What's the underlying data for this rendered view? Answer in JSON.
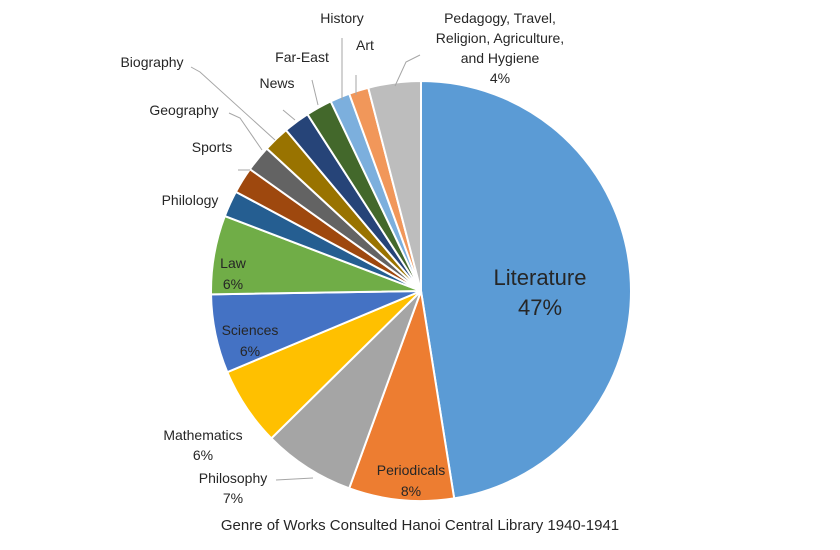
{
  "chart_data": {
    "type": "pie",
    "title": "Genre of Works Consulted Hanoi Central Library 1940-1941",
    "slices": [
      {
        "label": "Literature",
        "value": 47,
        "value_label": "47%",
        "color": "#5B9BD5"
      },
      {
        "label": "Periodicals",
        "value": 8,
        "value_label": "8%",
        "color": "#ED7D31"
      },
      {
        "label": "Philosophy",
        "value": 7,
        "value_label": "7%",
        "color": "#A5A5A5"
      },
      {
        "label": "Mathematics",
        "value": 6,
        "value_label": "6%",
        "color": "#FFC000"
      },
      {
        "label": "Sciences",
        "value": 6,
        "value_label": "6%",
        "color": "#4472C4"
      },
      {
        "label": "Law",
        "value": 6,
        "value_label": "6%",
        "color": "#70AD47"
      },
      {
        "label": "Philology",
        "value": 2,
        "value_label": "",
        "color": "#255E91"
      },
      {
        "label": "",
        "value": 2,
        "value_label": "",
        "color": "#9E480E"
      },
      {
        "label": "Sports",
        "value": 2,
        "value_label": "",
        "color": "#636363"
      },
      {
        "label": "Geography",
        "value": 2,
        "value_label": "",
        "color": "#997300"
      },
      {
        "label": "Biography",
        "value": 2,
        "value_label": "",
        "color": "#264478"
      },
      {
        "label": "News",
        "value": 2,
        "value_label": "",
        "color": "#43682B"
      },
      {
        "label": "Far-East",
        "value": 1.5,
        "value_label": "",
        "color": "#7CAFDD"
      },
      {
        "label": "History",
        "value": 1.5,
        "value_label": "",
        "color": "#F1975A"
      },
      {
        "label": "Art",
        "value": 0,
        "value_label": "",
        "color": "#B7B7B7"
      },
      {
        "label": "Pedagogy, Travel, Religion, Agriculture, and Hygiene",
        "value": 4,
        "value_label": "4%",
        "color": "#BDBDBD"
      }
    ]
  }
}
